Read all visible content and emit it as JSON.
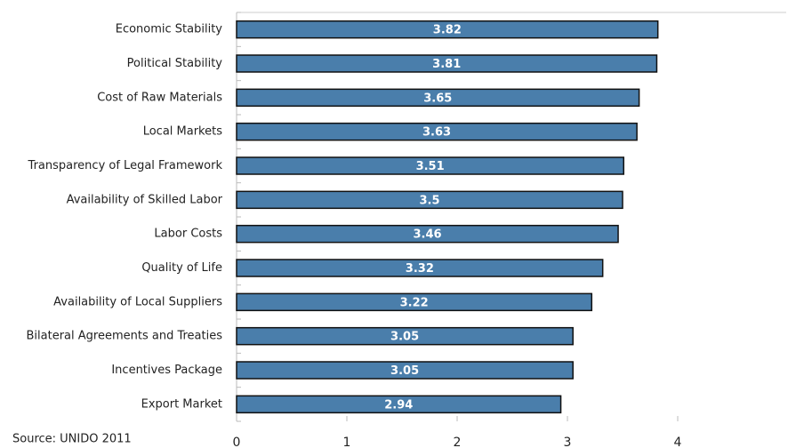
{
  "chart_data": {
    "type": "barh",
    "categories": [
      "Economic Stability",
      "Political Stability",
      "Cost of Raw Materials",
      "Local Markets",
      "Transparency of Legal Framework",
      "Availability of Skilled Labor",
      "Labor Costs",
      "Quality of Life",
      "Availability of Local Suppliers",
      "Bilateral Agreements and Treaties",
      "Incentives Package",
      "Export Market"
    ],
    "values": [
      3.82,
      3.81,
      3.65,
      3.63,
      3.51,
      3.5,
      3.46,
      3.32,
      3.22,
      3.05,
      3.05,
      2.94
    ],
    "color": "#4a7eab",
    "xlim": [
      0,
      5
    ],
    "xticks": [
      0,
      1,
      2,
      3,
      4
    ],
    "source": "Source: UNIDO 2011"
  }
}
